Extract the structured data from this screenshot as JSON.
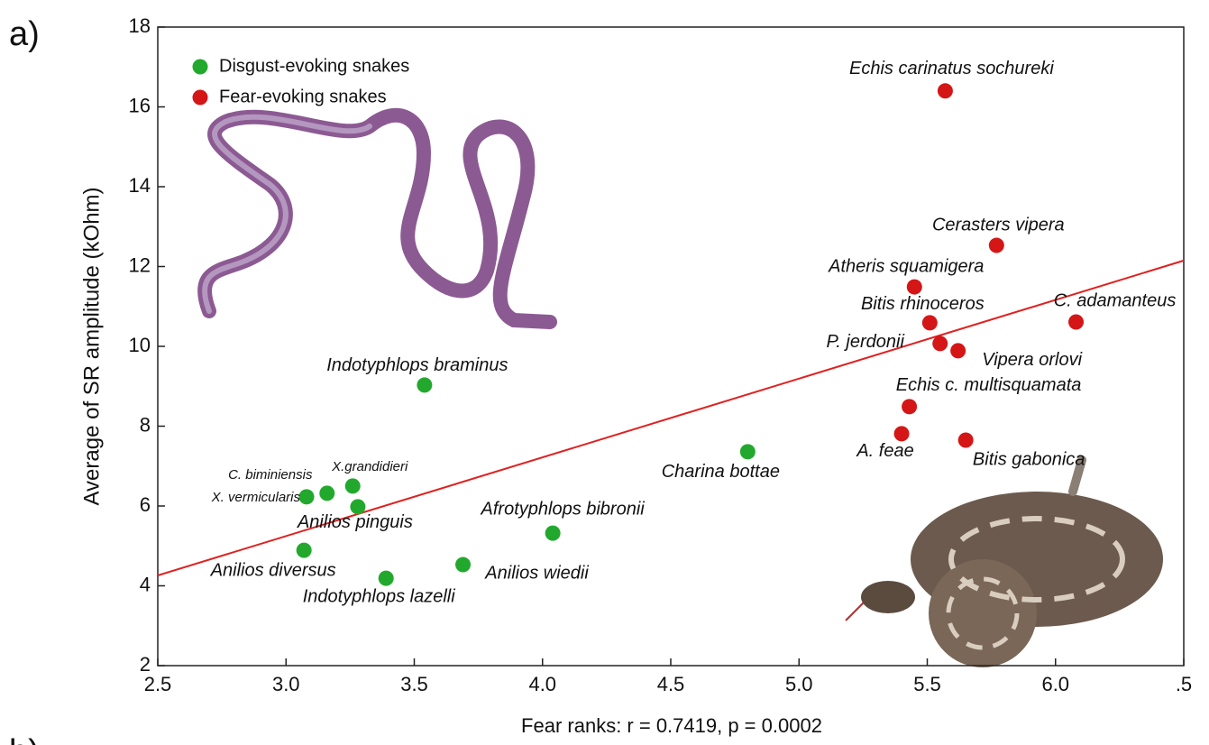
{
  "chart_data": {
    "type": "scatter",
    "panel_label": "a)",
    "next_panel_label": "b)",
    "xlabel": "Fear ranks: r = 0.7419, p = 0.0002",
    "ylabel": "Average of SR amplitude (kOhm)",
    "xlim": [
      2.5,
      6.5
    ],
    "ylim": [
      2,
      18
    ],
    "xticks": [
      2.5,
      {
        "value": 3,
        "label": "3.0"
      },
      3.5,
      {
        "value": 4,
        "label": "4.0"
      },
      4.5,
      {
        "value": 5,
        "label": "5.0"
      },
      5.5,
      {
        "value": 6,
        "label": "6.0"
      },
      {
        "value": 6.5,
        "label": ".5"
      }
    ],
    "yticks": [
      2,
      4,
      6,
      8,
      10,
      12,
      14,
      16,
      18
    ],
    "legend": "top-left",
    "series": [
      {
        "name": "Disgust-evoking snakes",
        "color": "#22a92d",
        "labels": [
          "Indotyphlops braminus",
          "Charina bottae",
          "C. biminiensis",
          "X.grandidieri",
          "X. vermicularis",
          "Anilios pinguis",
          "Afrotyphlops bibronii",
          "Anilios diversus",
          "Anilios wiedii",
          "Indotyphlops lazelli"
        ],
        "x": [
          3.54,
          4.8,
          3.16,
          3.26,
          3.08,
          3.28,
          4.04,
          3.07,
          3.69,
          3.39
        ],
        "values": [
          9.03,
          7.36,
          6.32,
          6.5,
          6.23,
          5.98,
          5.32,
          4.89,
          4.53,
          4.19
        ]
      },
      {
        "name": "Fear-evoking snakes",
        "color": "#d41616",
        "labels": [
          "Echis carinatus sochureki",
          "Cerasters vipera",
          "Atheris squamigera",
          "Bitis rhinoceros",
          "C. adamanteus",
          "P. jerdonii",
          "Vipera orlovi",
          "Echis c. multisquamata",
          "A. feae",
          "Bitis gabonica"
        ],
        "x": [
          5.57,
          5.77,
          5.45,
          5.51,
          6.08,
          5.55,
          5.62,
          5.43,
          5.4,
          5.65
        ],
        "values": [
          16.4,
          12.53,
          11.49,
          10.59,
          10.61,
          10.07,
          9.89,
          8.49,
          7.81,
          7.65
        ]
      }
    ],
    "trendline": {
      "color": "#e02020",
      "x": [
        2.5,
        6.5
      ],
      "values": [
        4.26,
        12.15
      ]
    }
  }
}
